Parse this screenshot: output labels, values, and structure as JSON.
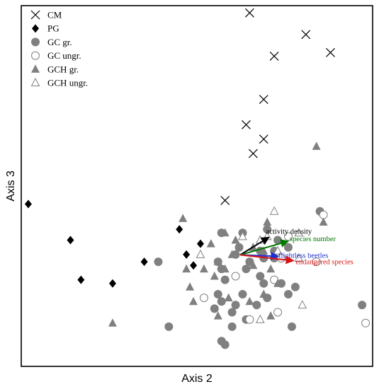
{
  "chart_data": {
    "type": "scatter",
    "title": "",
    "xlabel": "Axis 2",
    "ylabel": "Axis 3",
    "xlim": [
      0,
      100
    ],
    "ylim": [
      0,
      100
    ],
    "legend_position": "top-left",
    "series": [
      {
        "name": "CM",
        "marker": "x",
        "color": "#000000",
        "points": [
          [
            65,
            98
          ],
          [
            81,
            92
          ],
          [
            88,
            87
          ],
          [
            72,
            86
          ],
          [
            69,
            74
          ],
          [
            64,
            67
          ],
          [
            69,
            63
          ],
          [
            66,
            59
          ],
          [
            58,
            46
          ]
        ]
      },
      {
        "name": "PG",
        "marker": "diamond-filled",
        "color": "#000000",
        "points": [
          [
            2,
            45
          ],
          [
            14,
            35
          ],
          [
            45,
            38
          ],
          [
            51,
            34
          ],
          [
            47,
            31
          ],
          [
            35,
            29
          ],
          [
            49,
            28
          ],
          [
            17,
            24
          ],
          [
            26,
            23
          ]
        ]
      },
      {
        "name": "GC gr.",
        "marker": "circle-filled",
        "color": "#808080",
        "points": [
          [
            85,
            43
          ],
          [
            70,
            38
          ],
          [
            57,
            37
          ],
          [
            63,
            37
          ],
          [
            73,
            35
          ],
          [
            76,
            33
          ],
          [
            62,
            33
          ],
          [
            68,
            32
          ],
          [
            39,
            29
          ],
          [
            56,
            29
          ],
          [
            72,
            32
          ],
          [
            69,
            30
          ],
          [
            72,
            30
          ],
          [
            61,
            31
          ],
          [
            65,
            29
          ],
          [
            57,
            27
          ],
          [
            64,
            27
          ],
          [
            68,
            25
          ],
          [
            58,
            24
          ],
          [
            69,
            23
          ],
          [
            78,
            22
          ],
          [
            74,
            23
          ],
          [
            76,
            20
          ],
          [
            56,
            20
          ],
          [
            63,
            20
          ],
          [
            57,
            18
          ],
          [
            61,
            17
          ],
          [
            67,
            17
          ],
          [
            55,
            16
          ],
          [
            60,
            15
          ],
          [
            70,
            19
          ],
          [
            64,
            13
          ],
          [
            60,
            11
          ],
          [
            42,
            11
          ],
          [
            77,
            11
          ],
          [
            97,
            17
          ],
          [
            57,
            7
          ],
          [
            58,
            6
          ]
        ]
      },
      {
        "name": "GC ungr.",
        "marker": "circle-open",
        "color": "#808080",
        "points": [
          [
            86,
            42
          ],
          [
            76,
            36
          ],
          [
            84,
            29
          ],
          [
            74,
            30
          ],
          [
            61,
            25
          ],
          [
            72,
            24
          ],
          [
            52,
            19
          ],
          [
            73,
            15
          ],
          [
            65,
            13
          ],
          [
            98,
            12
          ]
        ]
      },
      {
        "name": "GCH gr.",
        "marker": "triangle-filled",
        "color": "#808080",
        "points": [
          [
            84,
            61
          ],
          [
            46,
            41
          ],
          [
            70,
            40
          ],
          [
            86,
            40
          ],
          [
            58,
            37
          ],
          [
            61,
            35
          ],
          [
            54,
            34
          ],
          [
            66,
            33
          ],
          [
            69,
            32
          ],
          [
            60,
            31
          ],
          [
            56,
            29
          ],
          [
            66,
            28
          ],
          [
            52,
            27
          ],
          [
            58,
            27
          ],
          [
            47,
            27
          ],
          [
            55,
            25
          ],
          [
            71,
            27
          ],
          [
            73,
            23
          ],
          [
            48,
            22
          ],
          [
            69,
            20
          ],
          [
            59,
            19
          ],
          [
            65,
            18
          ],
          [
            49,
            18
          ],
          [
            56,
            14
          ],
          [
            71,
            14
          ],
          [
            26,
            12
          ]
        ]
      },
      {
        "name": "GCH ungr.",
        "marker": "triangle-open",
        "color": "#808080",
        "points": [
          [
            72,
            43
          ],
          [
            63,
            36
          ],
          [
            70,
            36
          ],
          [
            68,
            35
          ],
          [
            79,
            37
          ],
          [
            51,
            31
          ],
          [
            73,
            32
          ],
          [
            79,
            30
          ],
          [
            80,
            17
          ],
          [
            68,
            13
          ]
        ]
      }
    ],
    "vectors": [
      {
        "label": "activity density",
        "color": "#000000",
        "from": [
          62.3,
          30.9
        ],
        "to": [
          70.5,
          35.8
        ]
      },
      {
        "label": "species number",
        "color": "#007a00",
        "from": [
          62.3,
          30.9
        ],
        "to": [
          76.0,
          34.7
        ]
      },
      {
        "label": "flightless beetles",
        "color": "#1f2fd0",
        "from": [
          62.3,
          30.9
        ],
        "to": [
          73.2,
          30.5
        ]
      },
      {
        "label": "endangered species",
        "color": "#d81414",
        "from": [
          62.3,
          30.9
        ],
        "to": [
          77.5,
          29.3
        ]
      }
    ]
  }
}
